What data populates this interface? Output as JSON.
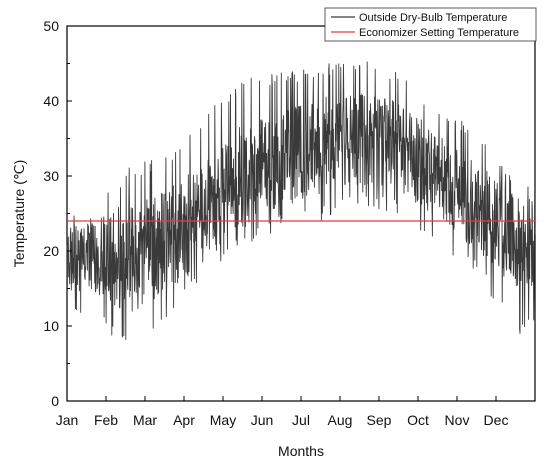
{
  "chart_data": {
    "type": "line",
    "xlabel": "Months",
    "ylabel": "Temperature (℃)",
    "ylim": [
      0,
      50
    ],
    "yticks": [
      0,
      10,
      20,
      30,
      40,
      50
    ],
    "categories": [
      "Jan",
      "Feb",
      "Mar",
      "Apr",
      "May",
      "Jun",
      "Jul",
      "Aug",
      "Sep",
      "Oct",
      "Nov",
      "Dec"
    ],
    "grid": false,
    "legend_position": "top-right",
    "series": [
      {
        "name": "Outside Dry-Bulb Temperature",
        "color": "#3a3a3a",
        "style": "hourly-envelope",
        "monthly_profile": [
          {
            "month": "Jan",
            "mean": 19,
            "min": 11,
            "max": 25
          },
          {
            "month": "Feb",
            "mean": 19,
            "min": 7,
            "max": 31
          },
          {
            "month": "Mar",
            "mean": 21,
            "min": 10,
            "max": 33
          },
          {
            "month": "Apr",
            "mean": 25,
            "min": 17,
            "max": 38
          },
          {
            "month": "May",
            "mean": 30,
            "min": 20,
            "max": 43
          },
          {
            "month": "Jun",
            "mean": 32,
            "min": 23,
            "max": 44
          },
          {
            "month": "Jul",
            "mean": 34,
            "min": 24,
            "max": 45
          },
          {
            "month": "Aug",
            "mean": 35,
            "min": 26,
            "max": 46
          },
          {
            "month": "Sep",
            "mean": 34,
            "min": 25,
            "max": 44
          },
          {
            "month": "Oct",
            "mean": 30,
            "min": 21,
            "max": 40
          },
          {
            "month": "Nov",
            "mean": 26,
            "min": 17,
            "max": 36
          },
          {
            "month": "Dec",
            "mean": 21,
            "min": 9,
            "max": 29
          }
        ]
      },
      {
        "name": "Economizer Setting Temperature",
        "color": "#e8393b",
        "style": "constant",
        "value": 24
      }
    ]
  }
}
